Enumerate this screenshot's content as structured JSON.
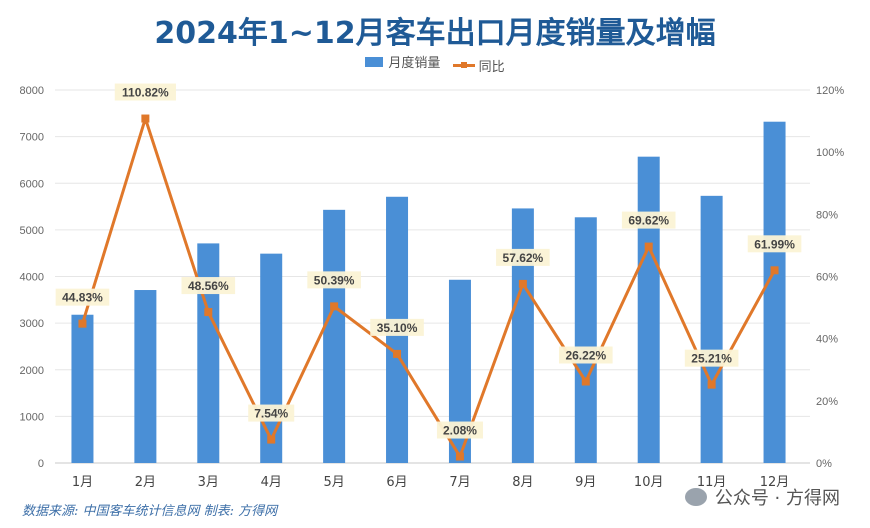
{
  "chart_data": {
    "type": "bar+line",
    "title": "2024年1~12月客车出口月度销量及增幅",
    "categories": [
      "1月",
      "2月",
      "3月",
      "4月",
      "5月",
      "6月",
      "7月",
      "8月",
      "9月",
      "10月",
      "11月",
      "12月"
    ],
    "series": [
      {
        "name": "月度销量",
        "type": "bar",
        "axis": "left",
        "color": "#4a8fd6",
        "values": [
          3180,
          3710,
          4710,
          4490,
          5430,
          5710,
          3930,
          5460,
          5270,
          6570,
          5730,
          7320
        ]
      },
      {
        "name": "同比",
        "type": "line",
        "axis": "right",
        "color": "#e0782a",
        "values": [
          44.83,
          110.82,
          48.56,
          7.54,
          50.39,
          35.1,
          2.08,
          57.62,
          26.22,
          69.62,
          25.21,
          61.99
        ],
        "labels": [
          "44.83%",
          "110.82%",
          "48.56%",
          "7.54%",
          "50.39%",
          "35.10%",
          "2.08%",
          "57.62%",
          "26.22%",
          "69.62%",
          "25.21%",
          "61.99%"
        ]
      }
    ],
    "y_left": {
      "range": [
        0,
        8000
      ],
      "ticks": [
        "0",
        "1000",
        "2000",
        "3000",
        "4000",
        "5000",
        "6000",
        "7000",
        "8000"
      ]
    },
    "y_right": {
      "range": [
        0,
        120
      ],
      "ticks": [
        "0%",
        "20%",
        "40%",
        "60%",
        "80%",
        "100%",
        "120%"
      ]
    },
    "grid": true,
    "legend": "top"
  },
  "footer": {
    "source": "数据来源: 中国客车统计信息网  制表: 方得网"
  },
  "watermark": "公众号 · 方得网"
}
